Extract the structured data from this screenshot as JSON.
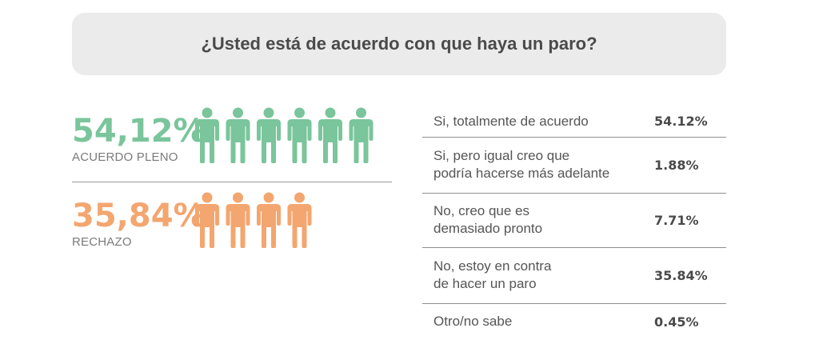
{
  "title": "¿Usted está de acuerdo con que haya un paro?",
  "colors": {
    "agree": "#7ac59b",
    "reject": "#f3a66f",
    "panel": "#ebebeb"
  },
  "summary": {
    "agree": {
      "percent_label": "54,12%",
      "caption": "ACUERDO PLENO",
      "icon": "person-icon",
      "icon_count": 6
    },
    "reject": {
      "percent_label": "35,84%",
      "caption": "RECHAZO",
      "icon": "person-icon",
      "icon_count": 4
    }
  },
  "chart_data": {
    "type": "table",
    "title": "¿Usted está de acuerdo con que haya un paro?",
    "rows": [
      {
        "label_lines": [
          "Si, totalmente de acuerdo"
        ],
        "value": 54.12,
        "value_label": "54.12%"
      },
      {
        "label_lines": [
          "Si, pero igual creo que",
          "podría hacerse más adelante"
        ],
        "value": 1.88,
        "value_label": "1.88%"
      },
      {
        "label_lines": [
          "No, creo que es",
          "demasiado pronto"
        ],
        "value": 7.71,
        "value_label": "7.71%"
      },
      {
        "label_lines": [
          "No, estoy en contra",
          "de hacer un paro"
        ],
        "value": 35.84,
        "value_label": "35.84%"
      },
      {
        "label_lines": [
          "Otro/no sabe"
        ],
        "value": 0.45,
        "value_label": "0.45%"
      }
    ]
  }
}
